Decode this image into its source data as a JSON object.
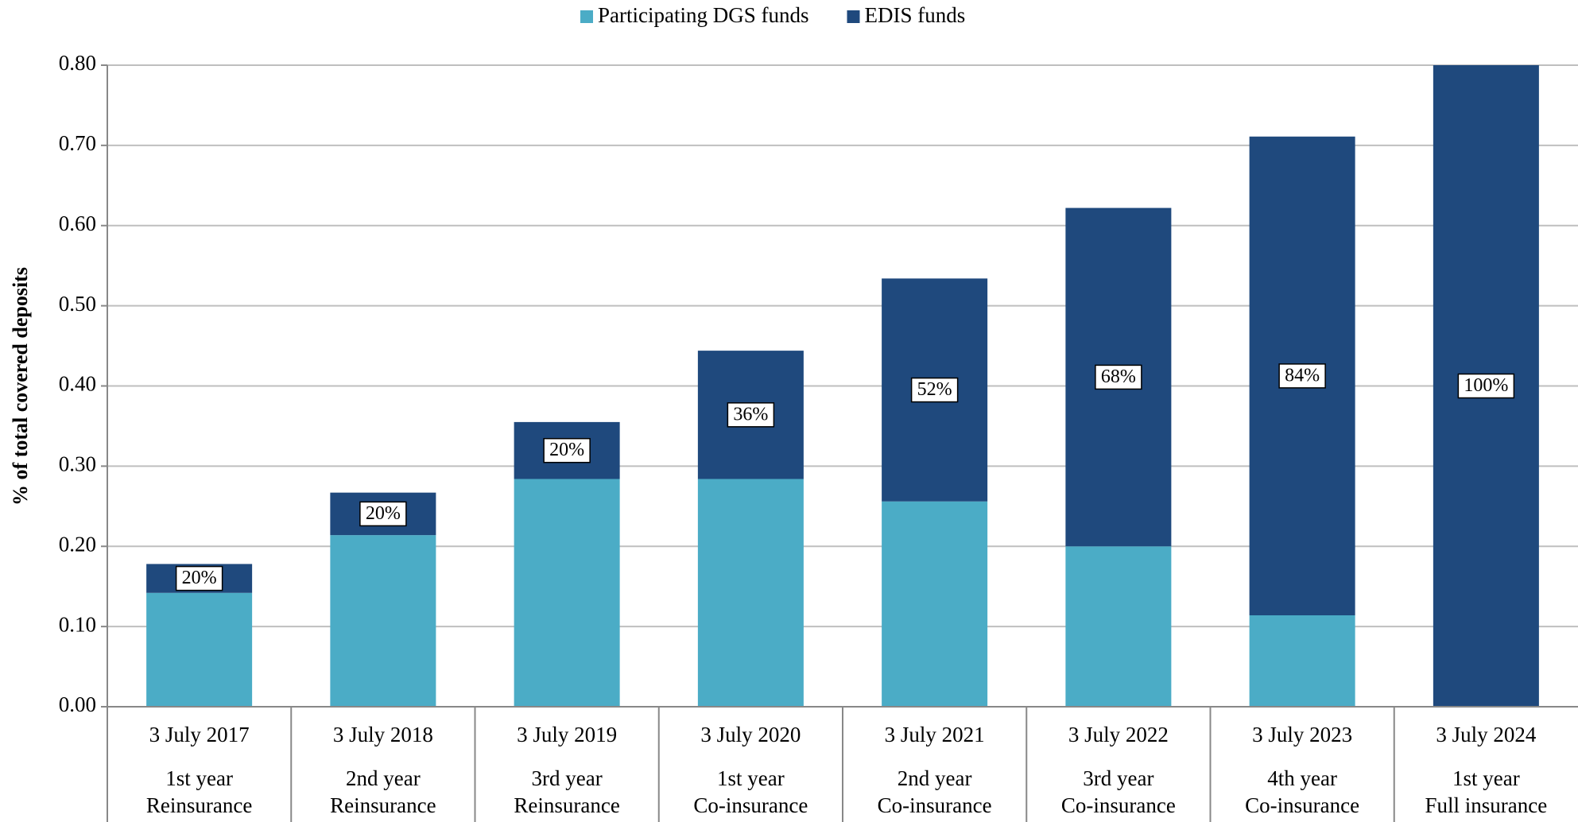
{
  "chart_data": {
    "type": "stacked_bar",
    "ylabel": "% of total covered deposits",
    "categories": [
      "3 July 2017",
      "3 July 2018",
      "3 July 2019",
      "3 July 2020",
      "3 July 2021",
      "3 July 2022",
      "3 July 2023",
      "3 July 2024"
    ],
    "phase_year": [
      "1st year",
      "2nd year",
      "3rd year",
      "1st year",
      "2nd year",
      "3rd year",
      "4th year",
      "1st year"
    ],
    "phase_type": [
      "Reinsurance",
      "Reinsurance",
      "Reinsurance",
      "Co-insurance",
      "Co-insurance",
      "Co-insurance",
      "Co-insurance",
      "Full insurance"
    ],
    "series": [
      {
        "name": "Participating DGS funds",
        "color": "#4bacc6",
        "values": [
          0.142,
          0.214,
          0.284,
          0.284,
          0.256,
          0.2,
          0.114,
          0
        ]
      },
      {
        "name": "EDIS funds",
        "color": "#1f497d",
        "values": [
          0.036,
          0.053,
          0.071,
          0.16,
          0.278,
          0.422,
          0.597,
          0.8
        ]
      }
    ],
    "edis_share": {
      "values": [
        20,
        20,
        20,
        36,
        52,
        68,
        84,
        100
      ],
      "value_labels": [
        "20%",
        "20%",
        "20%",
        "36%",
        "52%",
        "68%",
        "84%",
        "100%"
      ]
    },
    "ylim": [
      0,
      0.8
    ],
    "yticks": [
      {
        "value": 0,
        "label": "0.00"
      },
      {
        "value": 0.1,
        "label": "0.10"
      },
      {
        "value": 0.2,
        "label": "0.20"
      },
      {
        "value": 0.3,
        "label": "0.30"
      },
      {
        "value": 0.4,
        "label": "0.40"
      },
      {
        "value": 0.5,
        "label": "0.50"
      },
      {
        "value": 0.6,
        "label": "0.60"
      },
      {
        "value": 0.7,
        "label": "0.70"
      },
      {
        "value": 0.8,
        "label": "0.80"
      }
    ],
    "grid": true,
    "legend": "top"
  }
}
